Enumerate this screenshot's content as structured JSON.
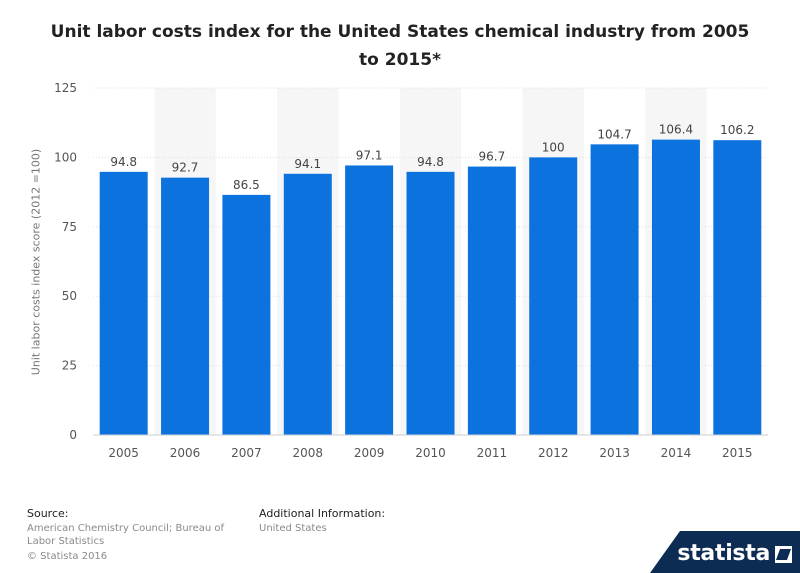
{
  "chart_data": {
    "type": "bar",
    "title": "Unit labor costs index for the United States chemical industry from 2005 to 2015*",
    "xlabel": "",
    "ylabel": "Unit labor costs index score (2012 =100)",
    "categories": [
      "2005",
      "2006",
      "2007",
      "2008",
      "2009",
      "2010",
      "2011",
      "2012",
      "2013",
      "2014",
      "2015"
    ],
    "values": [
      94.8,
      92.7,
      86.5,
      94.1,
      97.1,
      94.8,
      96.7,
      100,
      104.7,
      106.4,
      106.2
    ],
    "value_labels": [
      "94.8",
      "92.7",
      "86.5",
      "94.1",
      "97.1",
      "94.8",
      "96.7",
      "100",
      "104.7",
      "106.4",
      "106.2"
    ],
    "ylim": [
      0,
      125
    ],
    "yticks": [
      "0",
      "25",
      "50",
      "75",
      "100",
      "125"
    ],
    "grid": true,
    "bar_color": "#0b72de",
    "band_color": "#f6f6f6"
  },
  "footer": {
    "source_label": "Source:",
    "source_text": "American Chemistry Council; Bureau of Labor Statistics",
    "copyright": "© Statista 2016",
    "info_label": "Additional Information:",
    "info_text": "United States"
  },
  "brand": {
    "name": "statista",
    "icon": "statista-logo-icon"
  }
}
